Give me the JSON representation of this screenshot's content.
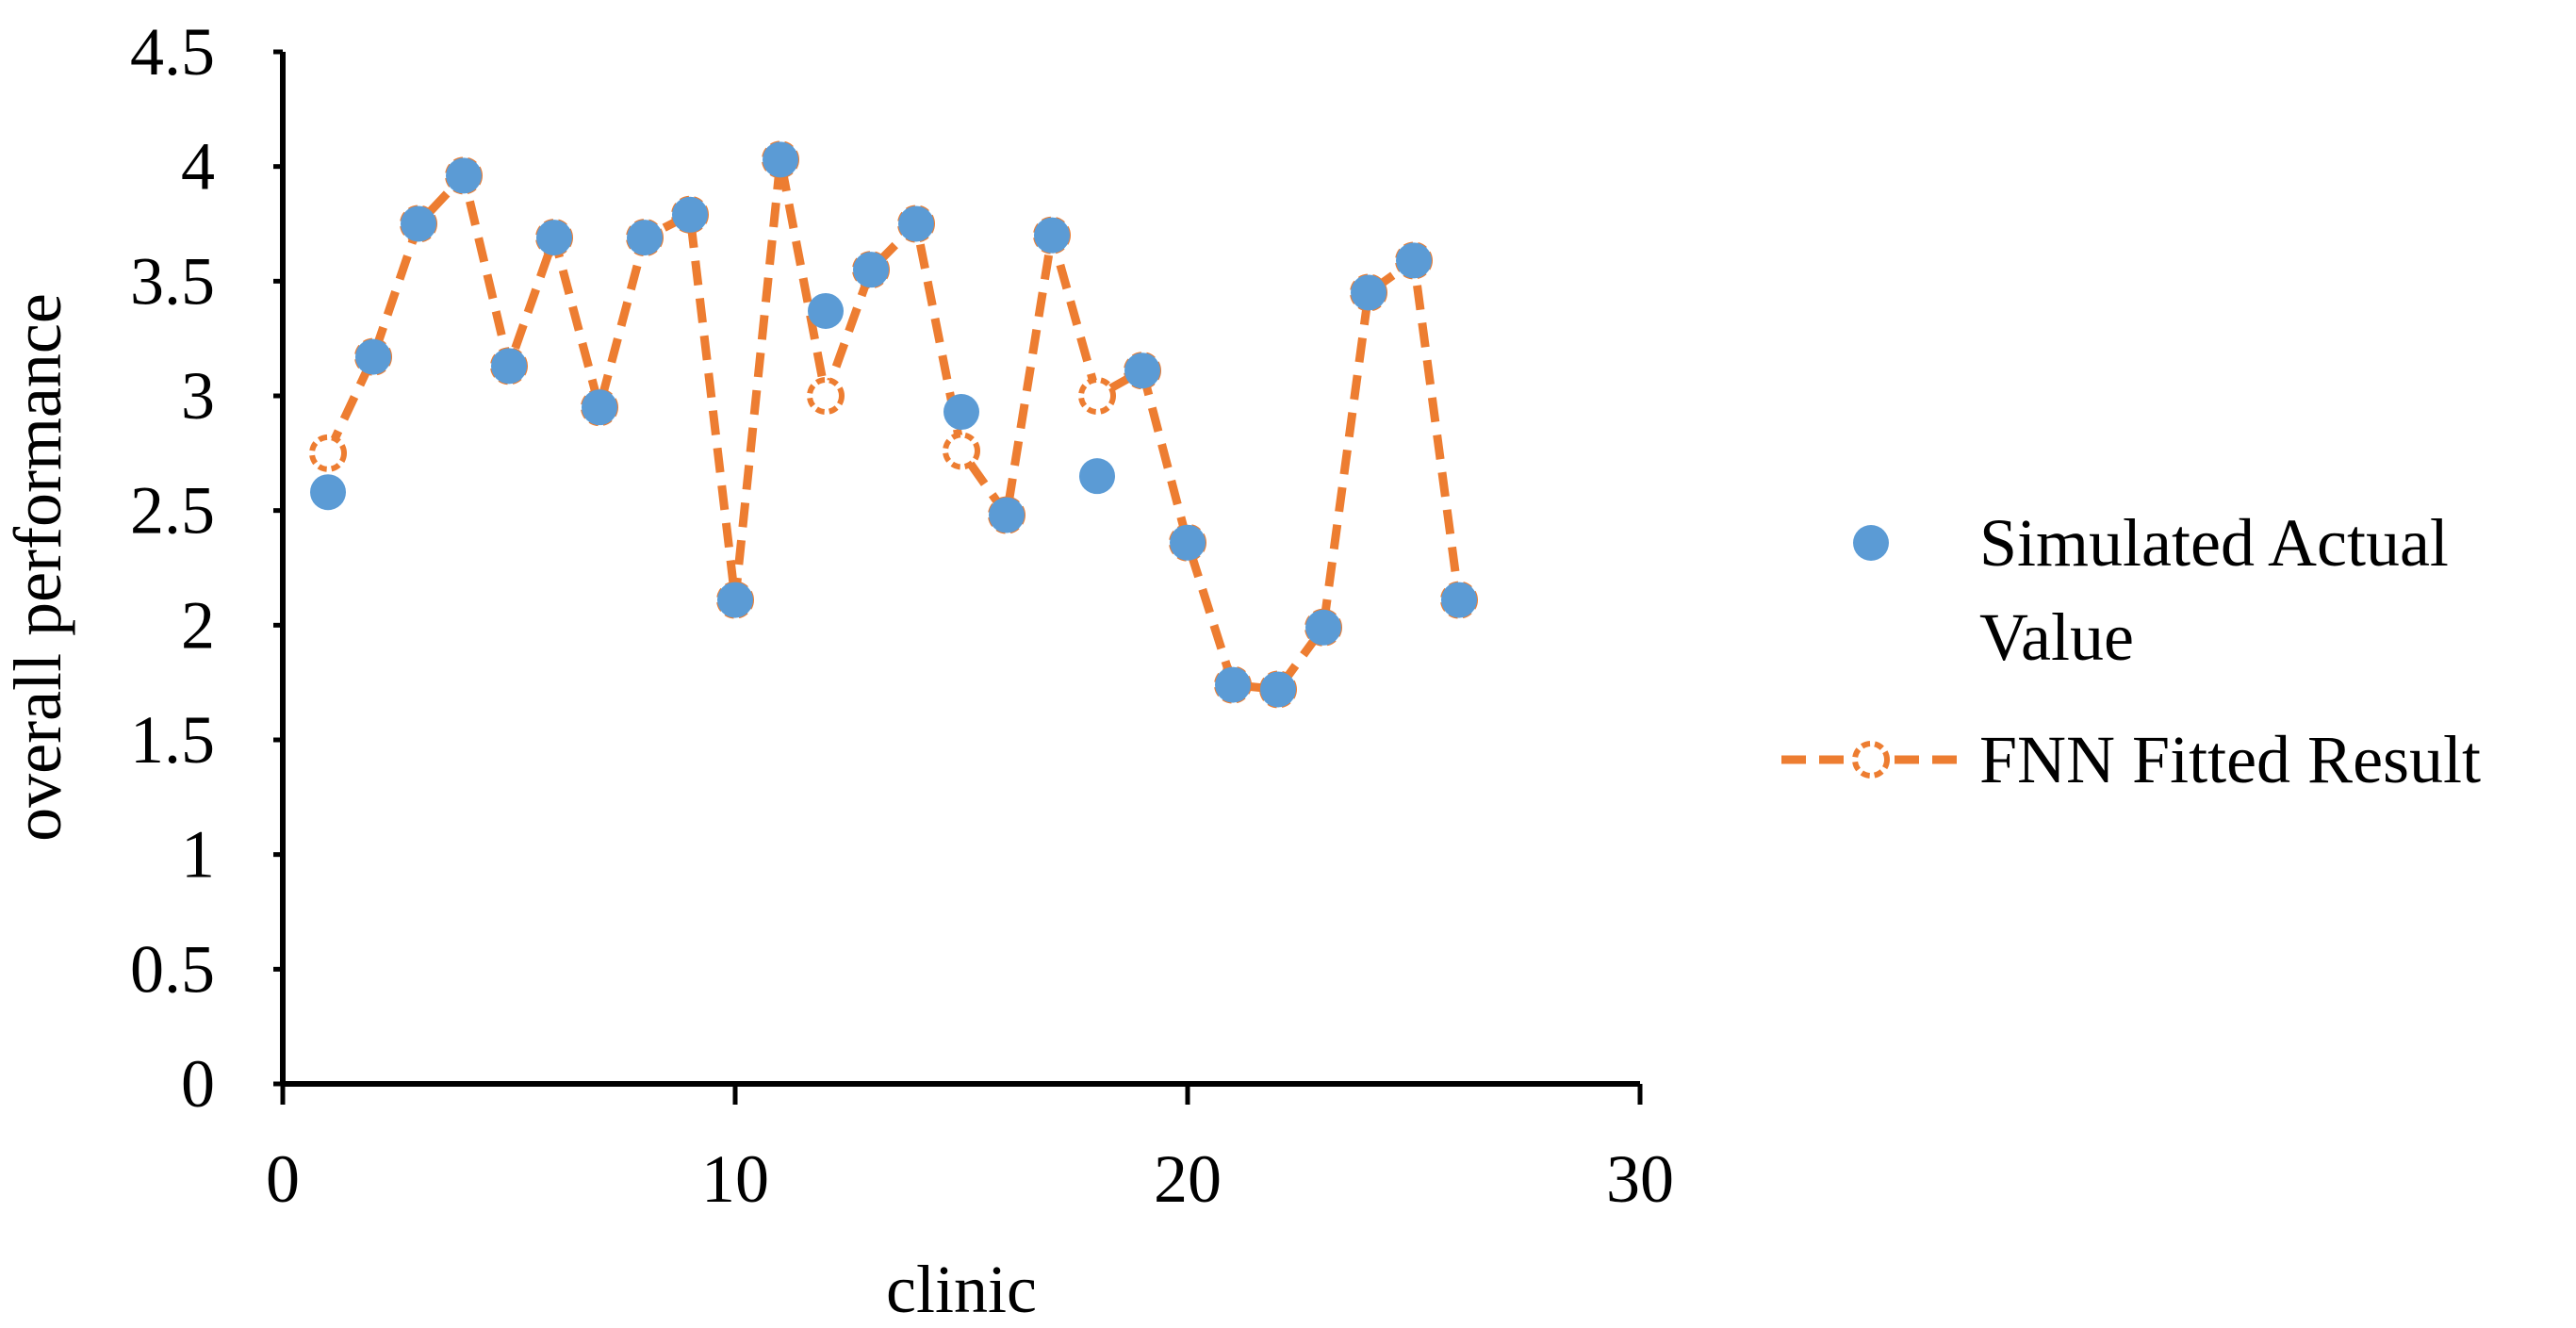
{
  "chart_data": {
    "type": "scatter",
    "xlabel": "clinic",
    "ylabel": "overall performance",
    "xlim": [
      0,
      30
    ],
    "ylim": [
      0,
      4.5
    ],
    "x_ticks": [
      "0",
      "10",
      "20",
      "30"
    ],
    "y_ticks": [
      "0",
      "0.5",
      "1",
      "1.5",
      "2",
      "2.5",
      "3",
      "3.5",
      "4",
      "4.5"
    ],
    "grid": false,
    "legend_position": "right",
    "series": [
      {
        "name": "Simulated Actual\nValue",
        "legend_lines": [
          "Simulated Actual",
          "Value"
        ],
        "kind": "marker",
        "color": "#5B9BD5",
        "x": [
          1,
          2,
          3,
          4,
          5,
          6,
          7,
          8,
          9,
          10,
          11,
          12,
          13,
          14,
          15,
          16,
          17,
          18,
          19,
          20,
          21,
          22,
          23,
          24,
          25,
          26
        ],
        "y": [
          2.58,
          3.17,
          3.75,
          3.96,
          3.13,
          3.69,
          2.95,
          3.69,
          3.79,
          2.11,
          4.03,
          3.37,
          3.55,
          3.75,
          2.93,
          2.48,
          3.7,
          2.65,
          3.11,
          2.36,
          1.74,
          1.72,
          1.99,
          3.45,
          3.59,
          2.11
        ]
      },
      {
        "name": "FNN Fitted Result",
        "kind": "dashed-line-hollow-marker",
        "color": "#ED7D31",
        "x": [
          1,
          2,
          3,
          4,
          5,
          6,
          7,
          8,
          9,
          10,
          11,
          12,
          13,
          14,
          15,
          16,
          17,
          18,
          19,
          20,
          21,
          22,
          23,
          24,
          25,
          26
        ],
        "y": [
          2.75,
          3.17,
          3.75,
          3.96,
          3.13,
          3.69,
          2.95,
          3.69,
          3.79,
          2.11,
          4.03,
          3.0,
          3.55,
          3.75,
          2.76,
          2.48,
          3.7,
          3.0,
          3.11,
          2.36,
          1.74,
          1.72,
          1.99,
          3.45,
          3.59,
          2.11
        ]
      }
    ]
  }
}
